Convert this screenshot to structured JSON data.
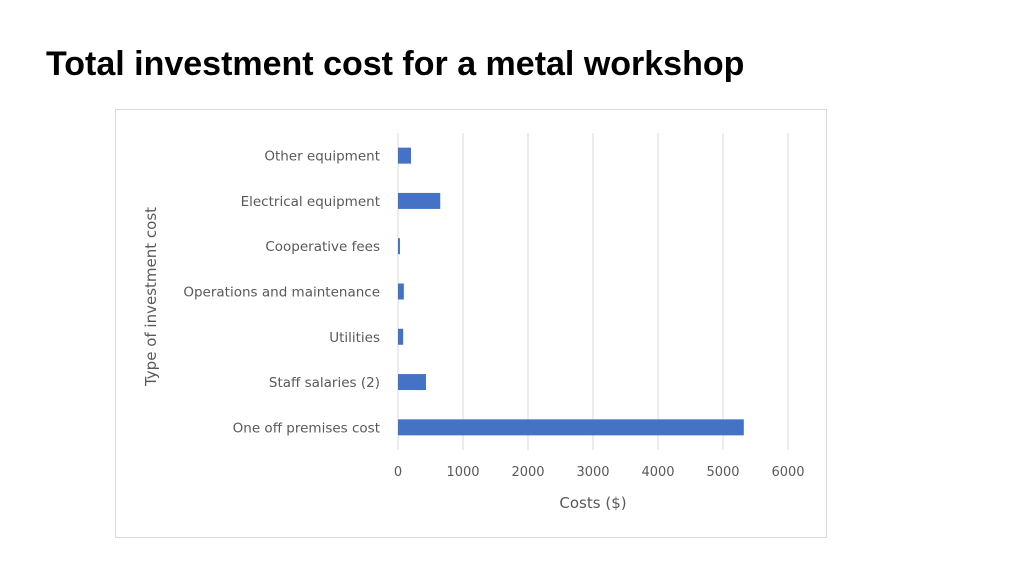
{
  "slide": {
    "title": "Total investment cost for a metal workshop"
  },
  "colors": {
    "bar": "#4472C4",
    "gridline": "#d9d9d9",
    "axis_text": "#595959"
  },
  "chart_data": {
    "type": "bar",
    "orientation": "horizontal",
    "title": "",
    "xlabel": "Costs ($)",
    "ylabel": "Type of investment cost",
    "xlim": [
      0,
      6000
    ],
    "xticks": [
      0,
      1000,
      2000,
      3000,
      4000,
      5000,
      6000
    ],
    "grid": "vertical",
    "legend": "none",
    "categories": [
      "Other equipment",
      "Electrical equipment",
      "Cooperative fees",
      "Operations and maintenance",
      "Utilities",
      "Staff salaries (2)",
      "One off premises cost"
    ],
    "values": [
      200,
      650,
      30,
      90,
      80,
      430,
      5320
    ]
  }
}
